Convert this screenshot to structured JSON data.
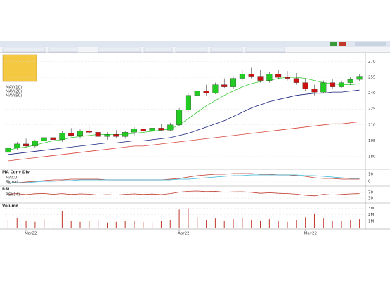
{
  "chart_data": [
    {
      "type": "candlestick",
      "categories": [
        null,
        null,
        "Mar22",
        null,
        null,
        null,
        null,
        null,
        null,
        null,
        null,
        null,
        null,
        null,
        null,
        null,
        null,
        null,
        null,
        "Apr22",
        null,
        null,
        null,
        null,
        null,
        null,
        null,
        null,
        null,
        null,
        null,
        null,
        null,
        "May22",
        null,
        null,
        null,
        null,
        null,
        null
      ],
      "open": [
        184,
        188,
        192,
        190,
        195,
        198,
        196,
        202,
        200,
        204,
        203,
        199,
        201,
        199,
        203,
        206,
        204,
        207,
        205,
        210,
        224,
        238,
        242,
        240,
        248,
        246,
        254,
        258,
        256,
        252,
        258,
        255,
        254,
        250,
        244,
        241,
        250,
        246,
        250,
        253
      ],
      "high": [
        190,
        194,
        197,
        196,
        200,
        203,
        204,
        207,
        206,
        209,
        206,
        203,
        205,
        204,
        208,
        210,
        209,
        211,
        212,
        226,
        240,
        246,
        248,
        250,
        254,
        256,
        262,
        264,
        262,
        260,
        262,
        261,
        259,
        254,
        248,
        252,
        253,
        252,
        255,
        258
      ],
      "low": [
        181,
        186,
        189,
        188,
        193,
        195,
        194,
        199,
        197,
        201,
        198,
        196,
        198,
        197,
        200,
        203,
        202,
        204,
        204,
        209,
        222,
        234,
        238,
        239,
        245,
        244,
        251,
        254,
        250,
        250,
        253,
        252,
        248,
        242,
        238,
        240,
        244,
        245,
        248,
        251
      ],
      "close": [
        188,
        192,
        190,
        195,
        198,
        196,
        202,
        200,
        204,
        203,
        199,
        201,
        199,
        203,
        206,
        204,
        207,
        205,
        210,
        224,
        238,
        242,
        240,
        248,
        246,
        254,
        258,
        256,
        252,
        258,
        255,
        254,
        250,
        244,
        241,
        250,
        246,
        250,
        253,
        256
      ],
      "up_color": "#22cc22",
      "down_color": "#cc1111",
      "series": [
        {
          "name": "MAV(10)",
          "color": "#33cc33",
          "values": [
            186,
            188,
            189,
            191,
            193,
            195,
            196,
            198,
            199,
            200,
            201,
            201,
            201,
            201,
            202,
            203,
            204,
            205,
            206,
            210,
            216,
            222,
            228,
            233,
            238,
            242,
            246,
            249,
            251,
            252,
            254,
            255,
            255,
            254,
            252,
            250,
            249,
            248,
            248,
            249
          ]
        },
        {
          "name": "MAV(20)",
          "color": "#1a237e",
          "values": [
            182,
            183,
            184,
            185,
            186,
            187,
            188,
            189,
            190,
            191,
            192,
            193,
            193,
            194,
            195,
            195,
            196,
            197,
            198,
            200,
            202,
            205,
            208,
            211,
            214,
            218,
            222,
            226,
            229,
            232,
            234,
            236,
            238,
            239,
            240,
            240,
            241,
            241,
            242,
            243
          ]
        },
        {
          "name": "MAV(50)",
          "color": "#d9443a",
          "values": [
            176,
            177,
            178,
            179,
            180,
            181,
            182,
            183,
            184,
            185,
            186,
            187,
            188,
            189,
            190,
            190,
            191,
            192,
            193,
            194,
            195,
            196,
            197,
            198,
            199,
            200,
            201,
            202,
            203,
            204,
            205,
            206,
            207,
            208,
            209,
            210,
            211,
            211,
            212,
            213
          ]
        }
      ],
      "ylim": [
        170,
        275
      ],
      "yticks": [
        180,
        195,
        210,
        225,
        240,
        255,
        270
      ],
      "grid": true
    },
    {
      "type": "line",
      "title": "MA Conv Div",
      "series": [
        {
          "name": "MACD",
          "color": "#c0392b",
          "values": [
            -3,
            -2,
            -1,
            0,
            1,
            2,
            2,
            3,
            3,
            3,
            3,
            2,
            2,
            2,
            2,
            2,
            2,
            2,
            3,
            4,
            6,
            8,
            9,
            10,
            10,
            11,
            11,
            11,
            10,
            10,
            9,
            9,
            8,
            7,
            5,
            4,
            4,
            3,
            3,
            3
          ]
        },
        {
          "name": "Signal",
          "color": "#35b6d6",
          "values": [
            -2,
            -2,
            -2,
            -1,
            0,
            0,
            1,
            1,
            2,
            2,
            2,
            2,
            2,
            2,
            2,
            2,
            2,
            2,
            2,
            3,
            3,
            4,
            5,
            6,
            7,
            8,
            8,
            9,
            9,
            9,
            9,
            9,
            9,
            8,
            8,
            7,
            6,
            5,
            4,
            4
          ]
        }
      ],
      "ylim": [
        -6,
        14
      ],
      "yticks": [
        0,
        10
      ]
    },
    {
      "type": "line",
      "title": "RSI",
      "series": [
        {
          "name": "RSI(14)",
          "color": "#c0392b",
          "values": [
            58,
            62,
            55,
            61,
            63,
            57,
            62,
            56,
            60,
            58,
            52,
            55,
            52,
            57,
            60,
            56,
            59,
            55,
            62,
            72,
            78,
            80,
            76,
            78,
            72,
            74,
            75,
            71,
            64,
            68,
            64,
            62,
            58,
            50,
            46,
            57,
            52,
            56,
            60,
            62
          ]
        }
      ],
      "ylim": [
        0,
        100
      ],
      "yticks": [
        30,
        70
      ]
    },
    {
      "type": "bar",
      "title": "Volume",
      "color": "#c0392b",
      "values": [
        1200000,
        1500000,
        1100000,
        900000,
        1300000,
        1000000,
        2600000,
        1100000,
        900000,
        1000000,
        1200000,
        800000,
        900000,
        1000000,
        1100000,
        900000,
        800000,
        1000000,
        1200000,
        2800000,
        3000000,
        1600000,
        1200000,
        1400000,
        1100000,
        1300000,
        1500000,
        1200000,
        1100000,
        1300000,
        1000000,
        900000,
        1200000,
        1600000,
        2200000,
        1400000,
        1100000,
        1000000,
        1200000,
        1300000
      ],
      "ylim": [
        0,
        3500000
      ],
      "yticks": [
        {
          "value": 1000000,
          "label": "1M"
        },
        {
          "value": 2000000,
          "label": "2M"
        },
        {
          "value": 3000000,
          "label": "3M"
        }
      ]
    }
  ]
}
